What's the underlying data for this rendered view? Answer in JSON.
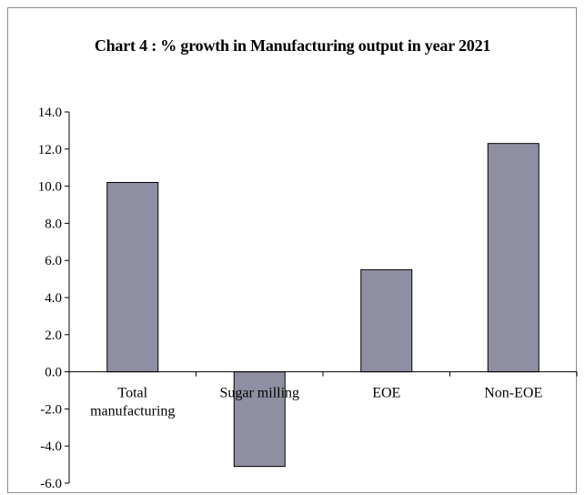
{
  "chart_data": {
    "type": "bar",
    "title": "Chart 4 : % growth in Manufacturing output in year  2021",
    "categories": [
      [
        "Total",
        "manufacturing"
      ],
      [
        "Sugar milling"
      ],
      [
        "EOE"
      ],
      [
        "Non-EOE"
      ]
    ],
    "values": [
      10.2,
      -5.1,
      5.5,
      12.3
    ],
    "ylim": [
      -6,
      14
    ],
    "yticks": [
      "14.0",
      "12.0",
      "10.0",
      "8.0",
      "6.0",
      "4.0",
      "2.0",
      "0.0",
      "-2.0",
      "-4.0",
      "-6.0"
    ],
    "ytick_values": [
      14,
      12,
      10,
      8,
      6,
      4,
      2,
      0,
      -2,
      -4,
      -6
    ],
    "grid": false,
    "colors": {
      "bar": "#8f8fa3",
      "bar_stroke": "#000000",
      "axis": "#000000"
    }
  }
}
